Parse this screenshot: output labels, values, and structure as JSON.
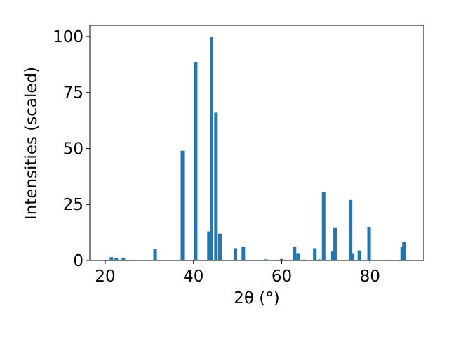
{
  "chart_data": {
    "type": "bar",
    "xlabel": "2θ (°)",
    "ylabel": "Intensities (scaled)",
    "x": [
      21.4,
      22.5,
      24.1,
      31.3,
      37.5,
      40.5,
      43.5,
      44.1,
      45.1,
      46.0,
      49.5,
      51.3,
      56.4,
      60.0,
      62.9,
      63.7,
      65.1,
      67.5,
      68.6,
      69.5,
      71.6,
      72.1,
      75.6,
      76.0,
      77.6,
      79.8,
      83.7,
      84.4,
      85.1,
      87.3,
      87.7,
      88.0
    ],
    "values": [
      1.5,
      1,
      1,
      5,
      49,
      88.5,
      13,
      100,
      66,
      12,
      5.5,
      6,
      0.5,
      0.7,
      6,
      3,
      0.4,
      5.5,
      0.5,
      30.5,
      4,
      14.5,
      27,
      3,
      4.5,
      14.8,
      0.3,
      0.3,
      0.3,
      6,
      8.5,
      0.3
    ],
    "color": "#1f77b4",
    "xlim": [
      16.5,
      92.2
    ],
    "xticks": [
      20,
      40,
      60,
      80
    ],
    "ylim": [
      0,
      105
    ],
    "yticks": [
      0,
      25,
      50,
      75,
      100
    ],
    "grid": false
  }
}
